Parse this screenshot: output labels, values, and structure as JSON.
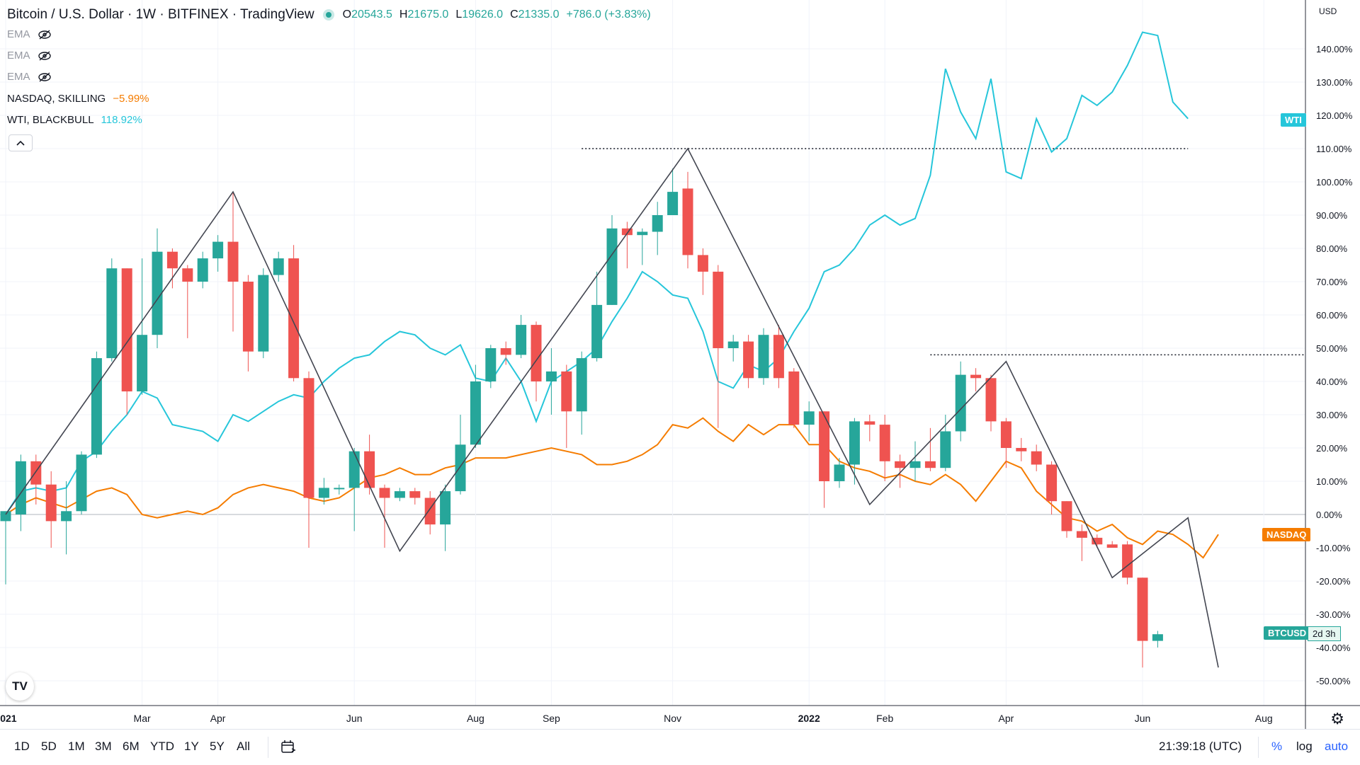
{
  "header": {
    "title": "Bitcoin / U.S. Dollar · 1W · BITFINEX · TradingView",
    "ohlc": [
      {
        "k": "O",
        "v": "20543.5"
      },
      {
        "k": "H",
        "v": "21675.0"
      },
      {
        "k": "L",
        "v": "19626.0"
      },
      {
        "k": "C",
        "v": "21335.0"
      },
      {
        "k": "",
        "v": "+786.0 (+3.83%)"
      }
    ]
  },
  "legend": {
    "ema1": "EMA",
    "ema2": "EMA",
    "ema3": "EMA",
    "nasdaq_label": "NASDAQ, SKILLING",
    "nasdaq_value": "−5.99%",
    "wti_label": "WTI, BLACKBULL",
    "wti_value": "118.92%",
    "collapse": "^"
  },
  "scale": {
    "currency": "USD",
    "wti_tag": "WTI",
    "nasdaq_tag": "NASDAQ",
    "btc_tag": "BTCUSD",
    "countdown": "2d 3h"
  },
  "bottombar": {
    "timeframes": [
      "1D",
      "5D",
      "1M",
      "3M",
      "6M",
      "YTD",
      "1Y",
      "5Y",
      "All"
    ],
    "clock": "21:39:18 (UTC)",
    "percent": "%",
    "log": "log",
    "auto": "auto"
  },
  "logo_text": "TV",
  "colors": {
    "up": "#26a69a",
    "down": "#ef5350",
    "nasdaq": "#f57c00",
    "wti": "#26c6da",
    "zigzag": "#434651"
  },
  "chart_data": {
    "type": "candlestick",
    "y_unit": "%",
    "y_ticks": [
      "140.00%",
      "130.00%",
      "120.00%",
      "110.00%",
      "100.00%",
      "90.00%",
      "80.00%",
      "70.00%",
      "60.00%",
      "50.00%",
      "40.00%",
      "30.00%",
      "20.00%",
      "10.00%",
      "0.00%",
      "-10.00%",
      "-20.00%",
      "-30.00%",
      "-40.00%",
      "-50.00%"
    ],
    "x_ticks": [
      {
        "label": "2021",
        "week": 0
      },
      {
        "label": "Mar",
        "week": 9
      },
      {
        "label": "Apr",
        "week": 14
      },
      {
        "label": "Jun",
        "week": 23
      },
      {
        "label": "Aug",
        "week": 31
      },
      {
        "label": "Sep",
        "week": 36
      },
      {
        "label": "Nov",
        "week": 44
      },
      {
        "label": "2022",
        "week": 53
      },
      {
        "label": "Feb",
        "week": 58
      },
      {
        "label": "Apr",
        "week": 66
      },
      {
        "label": "Jun",
        "week": 75
      },
      {
        "label": "Aug",
        "week": 83
      }
    ],
    "btc_candles": [
      [
        -2,
        1,
        -21,
        0
      ],
      [
        0,
        16,
        -5,
        18
      ],
      [
        16,
        9,
        3,
        18
      ],
      [
        9,
        -2,
        -10,
        13
      ],
      [
        -2,
        1,
        -12,
        10
      ],
      [
        1,
        18,
        0,
        19
      ],
      [
        18,
        47,
        17,
        49
      ],
      [
        47,
        74,
        46,
        77
      ],
      [
        74,
        37,
        30,
        74
      ],
      [
        37,
        54,
        36,
        77
      ],
      [
        54,
        79,
        50,
        86
      ],
      [
        79,
        74,
        68,
        80
      ],
      [
        74,
        70,
        53,
        75
      ],
      [
        70,
        77,
        68,
        79
      ],
      [
        77,
        82,
        73,
        84
      ],
      [
        82,
        70,
        55,
        97
      ],
      [
        70,
        49,
        43,
        72
      ],
      [
        49,
        72,
        47,
        74
      ],
      [
        72,
        77,
        70,
        79
      ],
      [
        77,
        41,
        40,
        81
      ],
      [
        41,
        5,
        -10,
        43
      ],
      [
        5,
        8,
        3,
        11
      ],
      [
        8,
        8,
        6,
        9
      ],
      [
        8,
        19,
        -5,
        20
      ],
      [
        19,
        8,
        6,
        24
      ],
      [
        8,
        5,
        -10,
        9
      ],
      [
        5,
        7,
        4,
        8
      ],
      [
        7,
        5,
        3,
        8
      ],
      [
        5,
        -3,
        -6,
        7
      ],
      [
        -3,
        7,
        -11,
        9
      ],
      [
        7,
        21,
        6,
        30
      ],
      [
        21,
        40,
        20,
        45
      ],
      [
        40,
        50,
        38,
        51
      ],
      [
        50,
        48,
        45,
        52
      ],
      [
        48,
        57,
        47,
        60
      ],
      [
        57,
        40,
        34,
        58
      ],
      [
        40,
        43,
        30,
        50
      ],
      [
        43,
        31,
        20,
        45
      ],
      [
        31,
        47,
        24,
        49
      ],
      [
        47,
        63,
        46,
        73
      ],
      [
        63,
        86,
        63,
        90
      ],
      [
        86,
        84,
        74,
        88
      ],
      [
        84,
        85,
        75,
        86
      ],
      [
        85,
        90,
        78,
        94
      ],
      [
        90,
        97,
        92,
        104
      ],
      [
        98,
        78,
        74,
        103
      ],
      [
        78,
        73,
        66,
        80
      ],
      [
        73,
        50,
        26,
        75
      ],
      [
        50,
        52,
        46,
        54
      ],
      [
        52,
        41,
        38,
        54
      ],
      [
        41,
        54,
        39,
        56
      ],
      [
        54,
        41,
        38,
        57
      ],
      [
        43,
        27,
        26,
        44
      ],
      [
        27,
        31,
        22,
        34
      ],
      [
        31,
        10,
        2,
        31
      ],
      [
        10,
        15,
        8,
        17
      ],
      [
        15,
        28,
        9,
        29
      ],
      [
        28,
        27,
        22,
        30
      ],
      [
        27,
        16,
        10,
        30
      ],
      [
        16,
        14,
        8,
        18
      ],
      [
        14,
        16,
        10,
        22
      ],
      [
        16,
        14,
        13,
        26
      ],
      [
        14,
        25,
        13,
        30
      ],
      [
        25,
        42,
        22,
        46
      ],
      [
        42,
        41,
        37,
        44
      ],
      [
        41,
        28,
        25,
        42
      ],
      [
        28,
        20,
        14,
        29
      ],
      [
        20,
        19,
        16,
        23
      ],
      [
        19,
        15,
        13,
        21
      ],
      [
        15,
        4,
        0,
        16
      ],
      [
        4,
        -5,
        -7,
        4
      ],
      [
        -5,
        -7,
        -14,
        -3
      ],
      [
        -7,
        -9,
        -10,
        -6
      ],
      [
        -9,
        -10,
        -10,
        -8
      ],
      [
        -9,
        -19,
        -21,
        -8
      ],
      [
        -19,
        -38,
        -46,
        -19
      ],
      [
        -38,
        -36,
        -40,
        -35
      ]
    ],
    "nasdaq_line": [
      [
        0,
        0
      ],
      [
        1,
        3
      ],
      [
        2,
        5
      ],
      [
        4,
        2
      ],
      [
        6,
        7
      ],
      [
        7,
        8
      ],
      [
        8,
        6
      ],
      [
        9,
        0
      ],
      [
        10,
        -1
      ],
      [
        11,
        0
      ],
      [
        12,
        1
      ],
      [
        13,
        0
      ],
      [
        14,
        2
      ],
      [
        15,
        6
      ],
      [
        16,
        8
      ],
      [
        17,
        9
      ],
      [
        18,
        8
      ],
      [
        19,
        7
      ],
      [
        20,
        5
      ],
      [
        21,
        4
      ],
      [
        22,
        5
      ],
      [
        23,
        8
      ],
      [
        24,
        11
      ],
      [
        25,
        12
      ],
      [
        26,
        14
      ],
      [
        27,
        12
      ],
      [
        28,
        12
      ],
      [
        29,
        14
      ],
      [
        30,
        15
      ],
      [
        31,
        17
      ],
      [
        32,
        17
      ],
      [
        33,
        17
      ],
      [
        34,
        18
      ],
      [
        35,
        19
      ],
      [
        36,
        20
      ],
      [
        37,
        19
      ],
      [
        38,
        18
      ],
      [
        39,
        15
      ],
      [
        40,
        15
      ],
      [
        41,
        16
      ],
      [
        42,
        18
      ],
      [
        43,
        21
      ],
      [
        44,
        27
      ],
      [
        45,
        26
      ],
      [
        46,
        29
      ],
      [
        47,
        25
      ],
      [
        48,
        22
      ],
      [
        49,
        27
      ],
      [
        50,
        24
      ],
      [
        51,
        27
      ],
      [
        52,
        27
      ],
      [
        53,
        21
      ],
      [
        54,
        21
      ],
      [
        55,
        16
      ],
      [
        56,
        14
      ],
      [
        57,
        13
      ],
      [
        58,
        11
      ],
      [
        59,
        12
      ],
      [
        60,
        10
      ],
      [
        61,
        9
      ],
      [
        62,
        12
      ],
      [
        63,
        9
      ],
      [
        64,
        4
      ],
      [
        65,
        10
      ],
      [
        66,
        16
      ],
      [
        67,
        14
      ],
      [
        68,
        7
      ],
      [
        69,
        3
      ],
      [
        70,
        -1
      ],
      [
        71,
        -2
      ],
      [
        72,
        -5
      ],
      [
        73,
        -3
      ],
      [
        74,
        -7
      ],
      [
        75,
        -9
      ],
      [
        76,
        -5
      ],
      [
        77,
        -6
      ],
      [
        78,
        -9
      ],
      [
        79,
        -13
      ],
      [
        80,
        -6
      ]
    ],
    "wti_line": [
      [
        0,
        0
      ],
      [
        1,
        7
      ],
      [
        2,
        8
      ],
      [
        3,
        7
      ],
      [
        4,
        8
      ],
      [
        5,
        16
      ],
      [
        6,
        19
      ],
      [
        7,
        25
      ],
      [
        8,
        30
      ],
      [
        9,
        37
      ],
      [
        10,
        35
      ],
      [
        11,
        27
      ],
      [
        12,
        26
      ],
      [
        13,
        25
      ],
      [
        14,
        22
      ],
      [
        15,
        30
      ],
      [
        16,
        28
      ],
      [
        17,
        31
      ],
      [
        18,
        34
      ],
      [
        19,
        36
      ],
      [
        20,
        35
      ],
      [
        21,
        40
      ],
      [
        22,
        44
      ],
      [
        23,
        47
      ],
      [
        24,
        48
      ],
      [
        25,
        52
      ],
      [
        26,
        55
      ],
      [
        27,
        54
      ],
      [
        28,
        50
      ],
      [
        29,
        48
      ],
      [
        30,
        51
      ],
      [
        31,
        41
      ],
      [
        32,
        40
      ],
      [
        33,
        47
      ],
      [
        34,
        40
      ],
      [
        35,
        28
      ],
      [
        36,
        40
      ],
      [
        37,
        43
      ],
      [
        38,
        46
      ],
      [
        39,
        50
      ],
      [
        40,
        58
      ],
      [
        41,
        65
      ],
      [
        42,
        73
      ],
      [
        43,
        70
      ],
      [
        44,
        66
      ],
      [
        45,
        65
      ],
      [
        46,
        55
      ],
      [
        47,
        40
      ],
      [
        48,
        38
      ],
      [
        49,
        45
      ],
      [
        50,
        43
      ],
      [
        51,
        47
      ],
      [
        52,
        55
      ],
      [
        53,
        62
      ],
      [
        54,
        73
      ],
      [
        55,
        75
      ],
      [
        56,
        80
      ],
      [
        57,
        87
      ],
      [
        58,
        90
      ],
      [
        59,
        87
      ],
      [
        60,
        89
      ],
      [
        61,
        102
      ],
      [
        62,
        134
      ],
      [
        63,
        121
      ],
      [
        64,
        113
      ],
      [
        65,
        131
      ],
      [
        66,
        103
      ],
      [
        67,
        101
      ],
      [
        68,
        119
      ],
      [
        69,
        109
      ],
      [
        70,
        113
      ],
      [
        71,
        126
      ],
      [
        72,
        123
      ],
      [
        73,
        127
      ],
      [
        74,
        135
      ],
      [
        75,
        145
      ],
      [
        76,
        144
      ],
      [
        77,
        124
      ],
      [
        78,
        119
      ]
    ],
    "zigzag": [
      [
        0,
        0
      ],
      [
        15,
        97
      ],
      [
        26,
        -11
      ],
      [
        45,
        110
      ],
      [
        57,
        3
      ],
      [
        66,
        46
      ],
      [
        73,
        -19
      ],
      [
        78,
        -1
      ],
      [
        80,
        -46
      ]
    ],
    "resistance_lines": [
      {
        "from_week": 38,
        "to_week": 78,
        "value": 110
      },
      {
        "from_week": 61,
        "to_week": 88,
        "value": 48
      }
    ]
  }
}
